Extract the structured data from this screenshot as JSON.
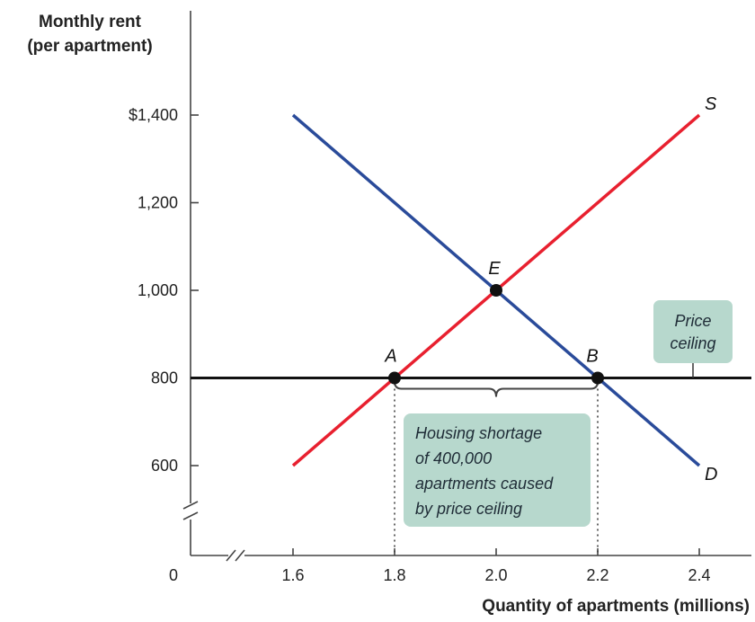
{
  "chart_data": {
    "type": "line",
    "y_axis_title": [
      "Monthly rent",
      "(per apartment)"
    ],
    "xlabel": "Quantity of apartments (millions)",
    "x_ticks": [
      "1.6",
      "1.8",
      "2.0",
      "2.2",
      "2.4"
    ],
    "x_tick_values": [
      1.6,
      1.8,
      2.0,
      2.2,
      2.4
    ],
    "y_ticks": [
      "$1,400",
      "1,200",
      "1,000",
      "800",
      "600"
    ],
    "y_tick_values": [
      1400,
      1200,
      1000,
      800,
      600
    ],
    "origin_label": "0",
    "xlim": [
      1.4,
      2.5
    ],
    "ylim": [
      400,
      1600
    ],
    "axis_breaks": true,
    "series": [
      {
        "name": "S",
        "color": "#e8202f",
        "x": [
          1.6,
          2.4
        ],
        "y": [
          600,
          1400
        ]
      },
      {
        "name": "D",
        "color": "#2a4b9a",
        "x": [
          1.6,
          2.4
        ],
        "y": [
          1400,
          600
        ]
      }
    ],
    "price_ceiling": {
      "y": 800,
      "color": "#111111",
      "label": [
        "Price",
        "ceiling"
      ]
    },
    "points": [
      {
        "label": "E",
        "x": 2.0,
        "y": 1000
      },
      {
        "label": "A",
        "x": 1.8,
        "y": 800
      },
      {
        "label": "B",
        "x": 2.2,
        "y": 800
      }
    ],
    "shortage_annotation": {
      "from_x": 1.8,
      "to_x": 2.2,
      "lines": [
        "Housing shortage",
        "of 400,000",
        "apartments caused",
        "by price ceiling"
      ]
    },
    "annotation_box_color": "#b7d8cd"
  }
}
